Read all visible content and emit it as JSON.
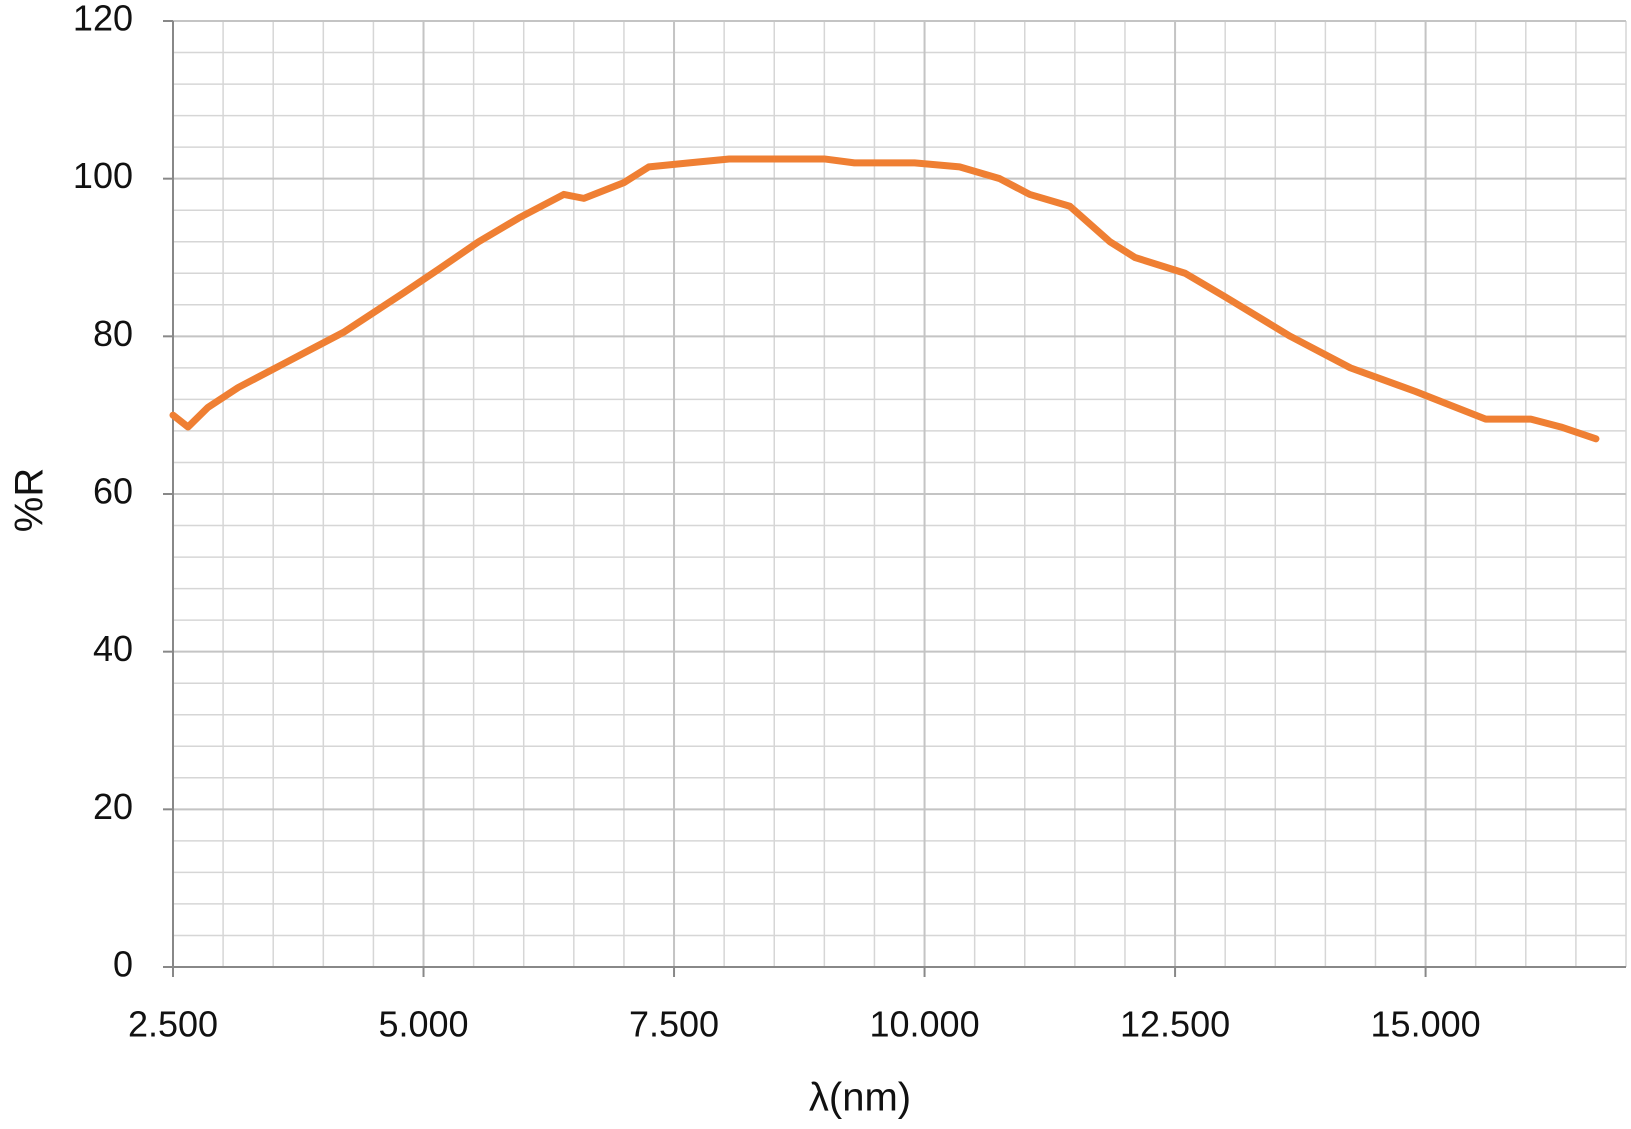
{
  "chart_data": {
    "type": "line",
    "x_label": "λ(nm)",
    "y_label": "%R",
    "x": [
      2500,
      2650,
      2850,
      3150,
      3600,
      3900,
      4200,
      4500,
      4800,
      5150,
      5550,
      5950,
      6400,
      6600,
      7000,
      7250,
      7650,
      8050,
      8550,
      9000,
      9300,
      9900,
      10350,
      10750,
      11050,
      11450,
      11850,
      12100,
      12600,
      13000,
      13650,
      14250,
      14900,
      15200,
      15600,
      16050,
      16350,
      16700
    ],
    "series": [
      {
        "name": "%R",
        "color": "#ef7f33",
        "values": [
          70,
          68.5,
          71,
          73.5,
          76.5,
          78.5,
          80.5,
          83,
          85.5,
          88.5,
          92,
          95,
          98,
          97.5,
          99.5,
          101.5,
          102,
          102.5,
          102.5,
          102.5,
          102,
          102,
          101.5,
          100,
          98,
          96.5,
          92,
          90,
          88,
          85,
          80,
          76,
          73,
          71.5,
          69.5,
          69.5,
          68.5,
          67
        ]
      }
    ],
    "xlim": [
      2500,
      17000
    ],
    "ylim": [
      0,
      120
    ],
    "xticks": [
      {
        "value": 2500,
        "label": "2.500"
      },
      {
        "value": 5000,
        "label": "5.000"
      },
      {
        "value": 7500,
        "label": "7.500"
      },
      {
        "value": 10000,
        "label": "10.000"
      },
      {
        "value": 12500,
        "label": "12.500"
      },
      {
        "value": 15000,
        "label": "15.000"
      }
    ],
    "yticks": [
      0,
      20,
      40,
      60,
      80,
      100,
      120
    ],
    "grid": true,
    "x_minor_step": 500,
    "y_minor_step": 4
  }
}
